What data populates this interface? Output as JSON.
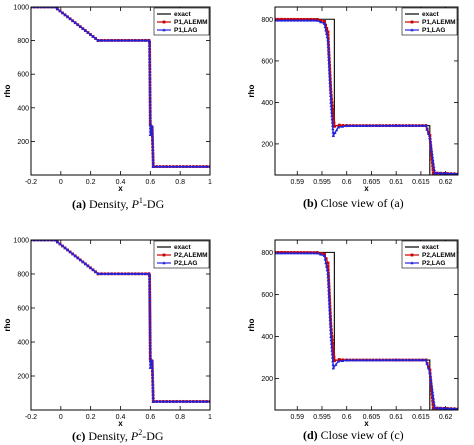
{
  "chart_data": [
    {
      "type": "line",
      "xlabel": "x",
      "ylabel": "rho",
      "xlim": [
        -0.2,
        1.0
      ],
      "ylim": [
        0,
        1000
      ],
      "xticks": [
        -0.2,
        0,
        0.2,
        0.4,
        0.6,
        0.8,
        1
      ],
      "xtick_labels": [
        "-0.2",
        "0",
        "0.2",
        "0.4",
        "0.6",
        "0.8",
        "1"
      ],
      "yticks": [
        200,
        400,
        600,
        800,
        1000
      ],
      "ytick_labels": [
        "200",
        "400",
        "600",
        "800",
        "1000"
      ],
      "legend_position": "top-right",
      "series": [
        {
          "name": "exact",
          "color": "#000000",
          "marker": "none",
          "x": [
            -0.2,
            -0.04,
            0.25,
            0.597,
            0.597,
            0.617,
            0.617,
            1.0
          ],
          "y": [
            1000,
            1000,
            801,
            801,
            288,
            288,
            50,
            50
          ]
        },
        {
          "name": "P1,ALEMM",
          "color": "#cc0000",
          "marker": "square",
          "x": [
            -0.2,
            -0.04,
            0.25,
            0.59,
            0.595,
            0.6,
            0.605,
            0.612,
            0.62,
            1.0
          ],
          "y": [
            1000,
            1000,
            801,
            801,
            790,
            300,
            280,
            284,
            50,
            50
          ]
        },
        {
          "name": "P1,LAG",
          "color": "#2222dd",
          "marker": "triangle",
          "x": [
            -0.2,
            -0.04,
            0.25,
            0.59,
            0.595,
            0.6,
            0.605,
            0.612,
            0.62,
            1.0
          ],
          "y": [
            1000,
            1000,
            801,
            801,
            790,
            240,
            270,
            290,
            50,
            50
          ]
        }
      ]
    },
    {
      "type": "line",
      "xlabel": "x",
      "ylabel": "rho",
      "xlim": [
        0.5855,
        0.6225
      ],
      "ylim": [
        50,
        860
      ],
      "xticks": [
        0.59,
        0.595,
        0.6,
        0.605,
        0.61,
        0.615,
        0.62
      ],
      "xtick_labels": [
        "0.59",
        "0.595",
        "0.6",
        "0.605",
        "0.61",
        "0.615",
        "0.62"
      ],
      "yticks": [
        200,
        400,
        600,
        800
      ],
      "ytick_labels": [
        "200",
        "400",
        "600",
        "800"
      ],
      "legend_position": "top-right",
      "series": [
        {
          "name": "exact",
          "color": "#000000",
          "marker": "none",
          "x": [
            0.5855,
            0.5975,
            0.5975,
            0.6168,
            0.6168,
            0.6225
          ],
          "y": [
            801,
            801,
            288,
            288,
            50,
            50
          ]
        },
        {
          "name": "P1,ALEMM",
          "color": "#cc0000",
          "marker": "square",
          "x": [
            0.5855,
            0.594,
            0.5955,
            0.5962,
            0.5968,
            0.5975,
            0.5985,
            0.6,
            0.61,
            0.616,
            0.6168,
            0.6175,
            0.6225
          ],
          "y": [
            801,
            800,
            790,
            740,
            450,
            285,
            290,
            288,
            288,
            288,
            240,
            60,
            55
          ]
        },
        {
          "name": "P1,LAG",
          "color": "#2222dd",
          "marker": "triangle",
          "x": [
            0.5855,
            0.594,
            0.5955,
            0.5962,
            0.5968,
            0.5973,
            0.5983,
            0.6,
            0.61,
            0.616,
            0.6168,
            0.6178,
            0.6225
          ],
          "y": [
            795,
            795,
            780,
            700,
            400,
            240,
            280,
            287,
            288,
            288,
            230,
            60,
            55
          ]
        }
      ]
    },
    {
      "type": "line",
      "xlabel": "x",
      "ylabel": "rho",
      "xlim": [
        -0.2,
        1.0
      ],
      "ylim": [
        0,
        1000
      ],
      "xticks": [
        -0.2,
        0,
        0.2,
        0.4,
        0.6,
        0.8,
        1
      ],
      "xtick_labels": [
        "-0.2",
        "0",
        "0.2",
        "0.4",
        "0.6",
        "0.8",
        "1"
      ],
      "yticks": [
        200,
        400,
        600,
        800,
        1000
      ],
      "ytick_labels": [
        "200",
        "400",
        "600",
        "800",
        "1000"
      ],
      "legend_position": "top-right",
      "series": [
        {
          "name": "exact",
          "color": "#000000",
          "marker": "none",
          "x": [
            -0.2,
            -0.04,
            0.25,
            0.597,
            0.597,
            0.617,
            0.617,
            1.0
          ],
          "y": [
            1000,
            1000,
            801,
            801,
            288,
            288,
            50,
            50
          ]
        },
        {
          "name": "P2,ALEMM",
          "color": "#cc0000",
          "marker": "square",
          "x": [
            -0.2,
            -0.04,
            0.25,
            0.59,
            0.595,
            0.6,
            0.605,
            0.612,
            0.62,
            1.0
          ],
          "y": [
            1000,
            1000,
            801,
            801,
            790,
            300,
            285,
            287,
            50,
            50
          ]
        },
        {
          "name": "P2,LAG",
          "color": "#2222dd",
          "marker": "triangle",
          "x": [
            -0.2,
            -0.04,
            0.25,
            0.59,
            0.595,
            0.6,
            0.605,
            0.612,
            0.62,
            1.0
          ],
          "y": [
            1000,
            1000,
            801,
            801,
            790,
            250,
            275,
            290,
            50,
            50
          ]
        }
      ]
    },
    {
      "type": "line",
      "xlabel": "x",
      "ylabel": "rho",
      "xlim": [
        0.5855,
        0.6225
      ],
      "ylim": [
        50,
        860
      ],
      "xticks": [
        0.59,
        0.595,
        0.6,
        0.605,
        0.61,
        0.615,
        0.62
      ],
      "xtick_labels": [
        "0.59",
        "0.595",
        "0.6",
        "0.605",
        "0.61",
        "0.615",
        "0.62"
      ],
      "yticks": [
        200,
        400,
        600,
        800
      ],
      "ytick_labels": [
        "200",
        "400",
        "600",
        "800"
      ],
      "legend_position": "top-right",
      "series": [
        {
          "name": "exact",
          "color": "#000000",
          "marker": "none",
          "x": [
            0.5855,
            0.5975,
            0.5975,
            0.6168,
            0.6168,
            0.6225
          ],
          "y": [
            801,
            801,
            288,
            288,
            50,
            50
          ]
        },
        {
          "name": "P2,ALEMM",
          "color": "#cc0000",
          "marker": "square",
          "x": [
            0.5855,
            0.594,
            0.5955,
            0.5962,
            0.5968,
            0.5975,
            0.5985,
            0.6,
            0.61,
            0.616,
            0.6168,
            0.6175,
            0.6225
          ],
          "y": [
            801,
            800,
            792,
            750,
            450,
            285,
            290,
            288,
            288,
            288,
            240,
            60,
            55
          ]
        },
        {
          "name": "P2,LAG",
          "color": "#2222dd",
          "marker": "triangle",
          "x": [
            0.5855,
            0.594,
            0.5955,
            0.5962,
            0.5968,
            0.5973,
            0.5983,
            0.6,
            0.61,
            0.616,
            0.6168,
            0.6178,
            0.6225
          ],
          "y": [
            797,
            797,
            785,
            700,
            400,
            250,
            282,
            287,
            288,
            288,
            230,
            60,
            55
          ]
        }
      ]
    }
  ],
  "captions": [
    {
      "label": "(a)",
      "text": "Density, ",
      "italic": "P",
      "sup": "1",
      "tail": "-DG"
    },
    {
      "label": "(b)",
      "text": "Close view of (a)",
      "italic": "",
      "sup": "",
      "tail": ""
    },
    {
      "label": "(c)",
      "text": "Density, ",
      "italic": "P",
      "sup": "2",
      "tail": "-DG"
    },
    {
      "label": "(d)",
      "text": "Close view of (c)",
      "italic": "",
      "sup": "",
      "tail": ""
    }
  ]
}
